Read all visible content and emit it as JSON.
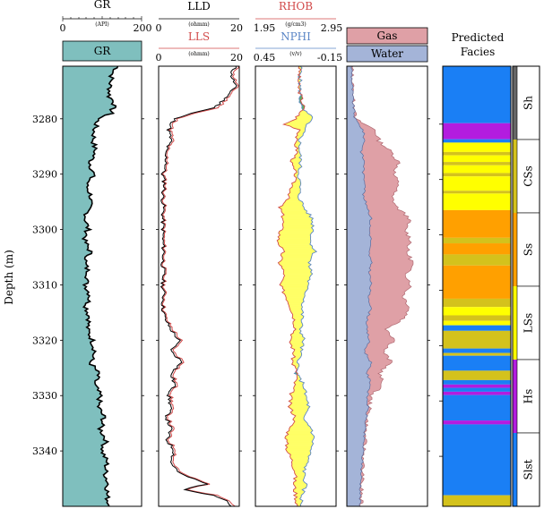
{
  "chart_data": {
    "type": "well-log",
    "ylabel": "Depth (m)",
    "depth_range_m": [
      3270.5,
      3350
    ],
    "depth_ticks": [
      3280,
      3290,
      3300,
      3310,
      3320,
      3330,
      3340
    ],
    "gr_track": {
      "curve": "GR",
      "unit": "(API)",
      "scale": [
        0,
        200
      ],
      "tick_labels": [
        "0",
        "200"
      ],
      "legend_label": "GR",
      "fill_color": "#7fbfbe",
      "profile": [
        [
          3270.5,
          140
        ],
        [
          3272,
          125
        ],
        [
          3274,
          120
        ],
        [
          3276,
          118
        ],
        [
          3277,
          132
        ],
        [
          3279,
          122
        ],
        [
          3280,
          90
        ],
        [
          3282,
          80
        ],
        [
          3284,
          78
        ],
        [
          3286,
          82
        ],
        [
          3288,
          70
        ],
        [
          3290,
          78
        ],
        [
          3292,
          60
        ],
        [
          3294,
          72
        ],
        [
          3296,
          66
        ],
        [
          3298,
          58
        ],
        [
          3300,
          64
        ],
        [
          3302,
          55
        ],
        [
          3304,
          70
        ],
        [
          3306,
          56
        ],
        [
          3308,
          66
        ],
        [
          3310,
          58
        ],
        [
          3312,
          70
        ],
        [
          3314,
          60
        ],
        [
          3316,
          68
        ],
        [
          3318,
          62
        ],
        [
          3320,
          75
        ],
        [
          3322,
          82
        ],
        [
          3324,
          70
        ],
        [
          3326,
          90
        ],
        [
          3328,
          80
        ],
        [
          3330,
          95
        ],
        [
          3332,
          90
        ],
        [
          3334,
          105
        ],
        [
          3336,
          95
        ],
        [
          3338,
          110
        ],
        [
          3340,
          100
        ],
        [
          3342,
          112
        ],
        [
          3344,
          108
        ],
        [
          3346,
          115
        ],
        [
          3348,
          112
        ],
        [
          3350,
          118
        ]
      ]
    },
    "resistivity_track": {
      "curves": [
        {
          "name": "LLD",
          "color": "#000000"
        },
        {
          "name": "LLS",
          "color": "#d24a4a"
        }
      ],
      "unit": "(ohmm)",
      "scale": [
        0,
        20
      ],
      "tick_labels": [
        "0",
        "20"
      ],
      "lld_profile": [
        [
          3270.5,
          19
        ],
        [
          3272,
          18
        ],
        [
          3274,
          19
        ],
        [
          3276,
          17
        ],
        [
          3278,
          14
        ],
        [
          3279,
          8
        ],
        [
          3280,
          4
        ],
        [
          3282,
          2.5
        ],
        [
          3284,
          3
        ],
        [
          3286,
          1.5
        ],
        [
          3288,
          2
        ],
        [
          3290,
          1
        ],
        [
          3292,
          1.5
        ],
        [
          3294,
          1
        ],
        [
          3296,
          1.2
        ],
        [
          3298,
          1
        ],
        [
          3300,
          1.1
        ],
        [
          3302,
          1
        ],
        [
          3304,
          1.3
        ],
        [
          3306,
          1
        ],
        [
          3308,
          1.2
        ],
        [
          3310,
          1
        ],
        [
          3312,
          1.3
        ],
        [
          3314,
          1
        ],
        [
          3316,
          1.5
        ],
        [
          3318,
          3
        ],
        [
          3320,
          5
        ],
        [
          3322,
          3
        ],
        [
          3324,
          6
        ],
        [
          3326,
          3
        ],
        [
          3328,
          4
        ],
        [
          3330,
          2.5
        ],
        [
          3332,
          3
        ],
        [
          3334,
          2
        ],
        [
          3336,
          3
        ],
        [
          3338,
          2
        ],
        [
          3340,
          4
        ],
        [
          3342,
          3
        ],
        [
          3344,
          5
        ],
        [
          3346,
          12
        ],
        [
          3347,
          6
        ],
        [
          3348,
          14
        ],
        [
          3349,
          17
        ],
        [
          3350,
          18
        ]
      ],
      "lls_profile": [
        [
          3270.5,
          20
        ],
        [
          3272,
          18.5
        ],
        [
          3274,
          19.5
        ],
        [
          3276,
          17.5
        ],
        [
          3278,
          15
        ],
        [
          3279,
          8.8
        ],
        [
          3280,
          4.6
        ],
        [
          3282,
          3
        ],
        [
          3284,
          3.5
        ],
        [
          3286,
          1.8
        ],
        [
          3288,
          2.4
        ],
        [
          3290,
          1.3
        ],
        [
          3292,
          1.8
        ],
        [
          3294,
          1.3
        ],
        [
          3296,
          1.5
        ],
        [
          3298,
          1.3
        ],
        [
          3300,
          1.4
        ],
        [
          3302,
          1.3
        ],
        [
          3304,
          1.6
        ],
        [
          3306,
          1.3
        ],
        [
          3308,
          1.5
        ],
        [
          3310,
          1.3
        ],
        [
          3312,
          1.6
        ],
        [
          3314,
          1.3
        ],
        [
          3316,
          1.8
        ],
        [
          3318,
          3.5
        ],
        [
          3320,
          5.5
        ],
        [
          3322,
          3.5
        ],
        [
          3324,
          6.5
        ],
        [
          3326,
          3.5
        ],
        [
          3328,
          4.5
        ],
        [
          3330,
          3
        ],
        [
          3332,
          3.5
        ],
        [
          3334,
          2.4
        ],
        [
          3336,
          3.5
        ],
        [
          3338,
          2.4
        ],
        [
          3340,
          4.5
        ],
        [
          3342,
          3.5
        ],
        [
          3344,
          5.5
        ],
        [
          3346,
          12.5
        ],
        [
          3347,
          6.5
        ],
        [
          3348,
          15
        ],
        [
          3349,
          17.5
        ],
        [
          3350,
          19
        ]
      ]
    },
    "density_neutron_track": {
      "curves": [
        {
          "name": "RHOB",
          "unit": "(g/cm3)",
          "scale": [
            1.95,
            2.95
          ],
          "color": "#d24a4a"
        },
        {
          "name": "NPHI",
          "unit": "(v/v)",
          "scale": [
            0.45,
            -0.15
          ],
          "color": "#5b86c6"
        }
      ],
      "tick_labels_top": [
        "1.95",
        "2.95"
      ],
      "tick_labels_bottom": [
        "0.45",
        "-0.15"
      ],
      "crossover_colors": {
        "separation": "#ffff66",
        "overlap": "#5fae5f"
      },
      "profile_frac": [
        [
          3270.5,
          0.55,
          0.56
        ],
        [
          3274,
          0.53,
          0.55
        ],
        [
          3278,
          0.6,
          0.56
        ],
        [
          3280,
          0.5,
          0.72
        ],
        [
          3281,
          0.36,
          0.62
        ],
        [
          3282,
          0.56,
          0.6
        ],
        [
          3284,
          0.49,
          0.55
        ],
        [
          3286,
          0.52,
          0.55
        ],
        [
          3288,
          0.44,
          0.56
        ],
        [
          3290,
          0.5,
          0.54
        ],
        [
          3292,
          0.46,
          0.55
        ],
        [
          3294,
          0.42,
          0.54
        ],
        [
          3296,
          0.3,
          0.6
        ],
        [
          3298,
          0.35,
          0.7
        ],
        [
          3300,
          0.32,
          0.72
        ],
        [
          3302,
          0.28,
          0.68
        ],
        [
          3304,
          0.34,
          0.74
        ],
        [
          3306,
          0.3,
          0.66
        ],
        [
          3308,
          0.36,
          0.7
        ],
        [
          3310,
          0.3,
          0.64
        ],
        [
          3312,
          0.38,
          0.62
        ],
        [
          3314,
          0.44,
          0.58
        ],
        [
          3316,
          0.48,
          0.58
        ],
        [
          3318,
          0.5,
          0.56
        ],
        [
          3320,
          0.42,
          0.6
        ],
        [
          3322,
          0.48,
          0.56
        ],
        [
          3324,
          0.46,
          0.54
        ],
        [
          3326,
          0.52,
          0.5
        ],
        [
          3328,
          0.48,
          0.6
        ],
        [
          3330,
          0.44,
          0.62
        ],
        [
          3332,
          0.42,
          0.66
        ],
        [
          3334,
          0.5,
          0.58
        ],
        [
          3336,
          0.42,
          0.7
        ],
        [
          3338,
          0.38,
          0.72
        ],
        [
          3340,
          0.4,
          0.68
        ],
        [
          3342,
          0.46,
          0.64
        ],
        [
          3344,
          0.5,
          0.6
        ],
        [
          3346,
          0.48,
          0.62
        ],
        [
          3348,
          0.5,
          0.58
        ],
        [
          3350,
          0.52,
          0.56
        ]
      ]
    },
    "fluid_track": {
      "legend": [
        {
          "name": "Gas",
          "color": "#dfa0a6"
        },
        {
          "name": "Water",
          "color": "#a4b4d8"
        }
      ],
      "profile_frac": [
        [
          3270.5,
          0.06,
          0.06
        ],
        [
          3276,
          0.07,
          0.07
        ],
        [
          3280,
          0.1,
          0.1
        ],
        [
          3282,
          0.2,
          0.35
        ],
        [
          3284,
          0.22,
          0.4
        ],
        [
          3286,
          0.18,
          0.55
        ],
        [
          3288,
          0.22,
          0.65
        ],
        [
          3290,
          0.2,
          0.58
        ],
        [
          3292,
          0.24,
          0.65
        ],
        [
          3294,
          0.2,
          0.55
        ],
        [
          3296,
          0.26,
          0.62
        ],
        [
          3298,
          0.3,
          0.78
        ],
        [
          3300,
          0.28,
          0.72
        ],
        [
          3302,
          0.3,
          0.8
        ],
        [
          3304,
          0.27,
          0.74
        ],
        [
          3306,
          0.3,
          0.82
        ],
        [
          3308,
          0.28,
          0.74
        ],
        [
          3310,
          0.3,
          0.8
        ],
        [
          3312,
          0.27,
          0.7
        ],
        [
          3314,
          0.3,
          0.78
        ],
        [
          3316,
          0.26,
          0.72
        ],
        [
          3318,
          0.24,
          0.5
        ],
        [
          3320,
          0.28,
          0.6
        ],
        [
          3322,
          0.22,
          0.45
        ],
        [
          3324,
          0.3,
          0.55
        ],
        [
          3326,
          0.25,
          0.4
        ],
        [
          3328,
          0.3,
          0.45
        ],
        [
          3330,
          0.25,
          0.3
        ],
        [
          3332,
          0.26,
          0.28
        ],
        [
          3336,
          0.22,
          0.23
        ],
        [
          3340,
          0.2,
          0.21
        ],
        [
          3344,
          0.18,
          0.19
        ],
        [
          3350,
          0.16,
          0.17
        ]
      ]
    },
    "facies_track": {
      "title_lines": [
        "Predicted",
        "Facies"
      ],
      "legend": [
        {
          "code": "Sh",
          "color": "#666666"
        },
        {
          "code": "CSs",
          "color": "#d4c21c"
        },
        {
          "code": "Ss",
          "color": "#ffa000"
        },
        {
          "code": "LSs",
          "color": "#ffff00"
        },
        {
          "code": "Hs",
          "color": "#b31cdf"
        },
        {
          "code": "Slst",
          "color": "#1a7ff5"
        }
      ],
      "legend_colors": [
        "#666666",
        "#d4c21c",
        "#ffa000",
        "#ffff00",
        "#b31cdf",
        "#1a7ff5"
      ],
      "intervals": [
        [
          "Slst",
          3270.5,
          3280.8
        ],
        [
          "Hs",
          3280.8,
          3283.7
        ],
        [
          "Slst",
          3283.7,
          3284.3
        ],
        [
          "LSs",
          3284.3,
          3286
        ],
        [
          "CSs",
          3286,
          3286.6
        ],
        [
          "LSs",
          3286.6,
          3287.8
        ],
        [
          "CSs",
          3287.8,
          3288.4
        ],
        [
          "LSs",
          3288.4,
          3289.8
        ],
        [
          "CSs",
          3289.8,
          3290.4
        ],
        [
          "LSs",
          3290.4,
          3293
        ],
        [
          "CSs",
          3293,
          3293.5
        ],
        [
          "LSs",
          3293.5,
          3296.5
        ],
        [
          "Ss",
          3296.5,
          3301.5
        ],
        [
          "CSs",
          3301.5,
          3302.5
        ],
        [
          "Ss",
          3302.5,
          3304.5
        ],
        [
          "CSs",
          3304.5,
          3306.5
        ],
        [
          "Ss",
          3306.5,
          3312.5
        ],
        [
          "CSs",
          3312.5,
          3314
        ],
        [
          "LSs",
          3314,
          3315.5
        ],
        [
          "CSs",
          3315.5,
          3316.5
        ],
        [
          "LSs",
          3316.5,
          3317.3
        ],
        [
          "Slst",
          3317.3,
          3318.3
        ],
        [
          "CSs",
          3318.3,
          3321.5
        ],
        [
          "Slst",
          3321.5,
          3322.3
        ],
        [
          "CSs",
          3322.3,
          3322.8
        ],
        [
          "Slst",
          3322.8,
          3325.5
        ],
        [
          "CSs",
          3325.5,
          3327.2
        ],
        [
          "Slst",
          3327.2,
          3328
        ],
        [
          "Hs",
          3328,
          3328.6
        ],
        [
          "Slst",
          3328.6,
          3329.3
        ],
        [
          "Hs",
          3329.3,
          3329.9
        ],
        [
          "Slst",
          3329.9,
          3334.5
        ],
        [
          "Hs",
          3334.5,
          3335.2
        ],
        [
          "Slst",
          3335.2,
          3348
        ],
        [
          "CSs",
          3348,
          3350
        ]
      ]
    }
  }
}
